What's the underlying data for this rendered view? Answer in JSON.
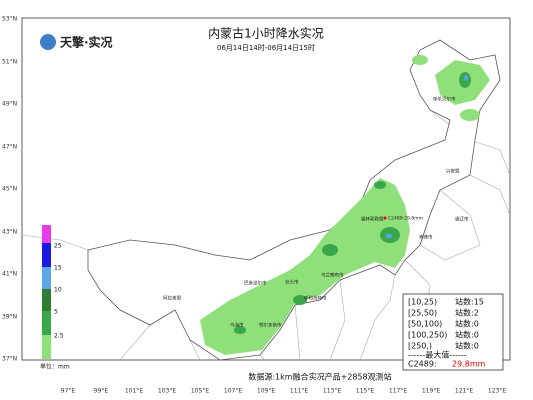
{
  "header": {
    "logo": "天擎·实况",
    "title": "内蒙古1小时降水实况",
    "subtitle": "06月14日14时-06月14日15时"
  },
  "axes": {
    "lat": [
      "53°N",
      "51°N",
      "49°N",
      "47°N",
      "45°N",
      "43°N",
      "41°N",
      "39°N",
      "37°N"
    ],
    "lon": [
      "97°E",
      "99°E",
      "101°E",
      "103°E",
      "105°E",
      "107°E",
      "109°E",
      "111°E",
      "113°E",
      "115°E",
      "117°E",
      "119°E",
      "121°E",
      "123°E"
    ]
  },
  "cities": [
    "呼伦贝尔市",
    "兴安盟",
    "通辽市",
    "赤峰市",
    "锡林郭勒盟",
    "乌兰察布市",
    "包头市",
    "巴彦淖尔市",
    "呼和浩特市",
    "鄂尔多斯市",
    "乌海市",
    "阿拉善盟"
  ],
  "max_marker": "C2489:29.8mm",
  "legend": {
    "levels": [
      "25",
      "15",
      "10",
      "5",
      "2.5"
    ],
    "unit": "单位：mm"
  },
  "stats": {
    "rows": [
      {
        "range": "[10,25)",
        "count": "站数:15"
      },
      {
        "range": "[25,50)",
        "count": "站数:2"
      },
      {
        "range": "[50,100)",
        "count": "站数:0"
      },
      {
        "range": "[100,250)",
        "count": "站数:0"
      },
      {
        "range": "[250,)",
        "count": "站数:0"
      }
    ],
    "max_heading": "------最大值------",
    "max_station": "C2489:",
    "max_value": "29.8mm"
  },
  "footer": {
    "source": "数据源:1km融合实况产品+2858观测站"
  }
}
